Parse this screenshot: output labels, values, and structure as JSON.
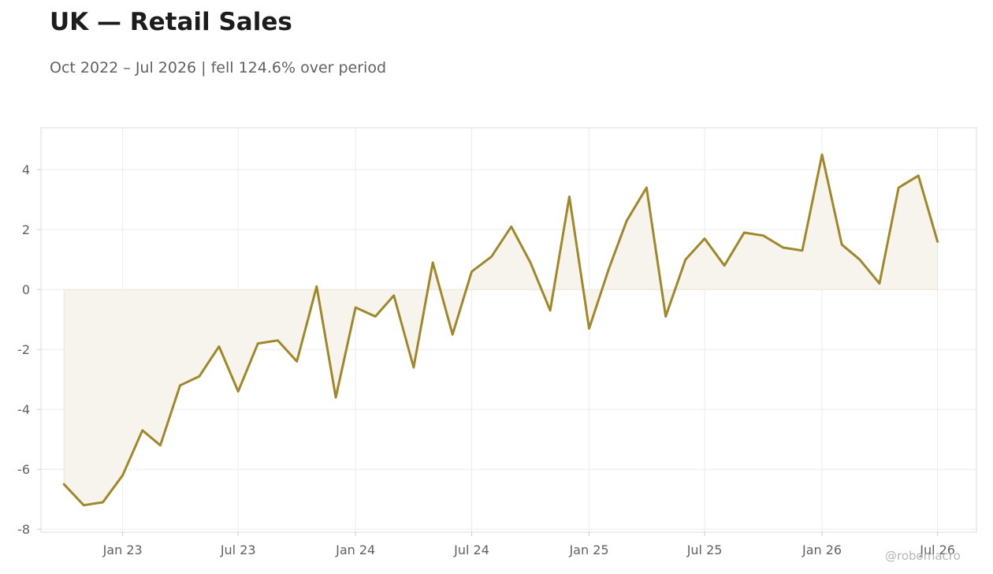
{
  "header": {
    "title": "UK — Retail Sales",
    "subtitle": "Oct 2022 – Jul 2026 | fell 124.6% over period"
  },
  "watermark": "@robomacro",
  "colors": {
    "line": "#a0882a",
    "fill": "#f7f4ee",
    "grid": "#ececec",
    "frame": "#dddddd",
    "tick_text": "#606068"
  },
  "chart_data": {
    "type": "area",
    "title": "UK — Retail Sales",
    "subtitle": "Oct 2022 – Jul 2026 | fell 124.6% over period",
    "xlabel": "",
    "ylabel": "",
    "grid": true,
    "ylim": [
      -8.1,
      5.4
    ],
    "xlim": [
      "2022-08-26",
      "2026-08-31"
    ],
    "y_ticks": [
      -8,
      -6,
      -4,
      -2,
      0,
      2,
      4
    ],
    "x_ticks": [
      {
        "label": "Jan 23",
        "date": "2023-01-01"
      },
      {
        "label": "Jul 23",
        "date": "2023-07-01"
      },
      {
        "label": "Jan 24",
        "date": "2024-01-01"
      },
      {
        "label": "Jul 24",
        "date": "2024-07-01"
      },
      {
        "label": "Jan 25",
        "date": "2025-01-01"
      },
      {
        "label": "Jul 25",
        "date": "2025-07-01"
      },
      {
        "label": "Jan 26",
        "date": "2026-01-01"
      },
      {
        "label": "Jul 26",
        "date": "2026-07-01"
      }
    ],
    "series": [
      {
        "x": [
          "2022-10-01",
          "2022-11-01",
          "2022-12-01",
          "2023-01-01",
          "2023-02-01",
          "2023-03-01",
          "2023-04-01",
          "2023-05-01",
          "2023-06-01",
          "2023-07-01",
          "2023-08-01",
          "2023-09-01",
          "2023-10-01",
          "2023-11-01",
          "2023-12-01",
          "2024-01-01",
          "2024-02-01",
          "2024-03-01",
          "2024-04-01",
          "2024-05-01",
          "2024-06-01",
          "2024-07-01",
          "2024-08-01",
          "2024-09-01",
          "2024-10-01",
          "2024-11-01",
          "2024-12-01",
          "2025-01-01",
          "2025-02-01",
          "2025-03-01",
          "2025-04-01",
          "2025-05-01",
          "2025-06-01",
          "2025-07-01",
          "2025-08-01",
          "2025-09-01",
          "2025-10-01",
          "2025-11-01",
          "2025-12-01",
          "2026-01-01",
          "2026-02-01",
          "2026-03-01",
          "2026-04-01",
          "2026-05-01",
          "2026-06-01",
          "2026-07-01"
        ],
        "values": [
          -6.5,
          -7.2,
          -7.1,
          -6.2,
          -4.7,
          -5.2,
          -3.2,
          -2.9,
          -1.9,
          -3.4,
          -1.8,
          -1.7,
          -2.4,
          0.1,
          -3.6,
          -0.6,
          -0.9,
          -0.2,
          -2.6,
          0.9,
          -1.5,
          0.6,
          1.1,
          2.1,
          0.9,
          -0.7,
          3.1,
          -1.3,
          0.7,
          2.3,
          3.4,
          -0.9,
          1.0,
          1.7,
          0.8,
          1.9,
          1.8,
          1.4,
          1.3,
          4.5,
          1.5,
          1.0,
          0.2,
          3.4,
          3.8,
          1.6
        ]
      }
    ]
  }
}
